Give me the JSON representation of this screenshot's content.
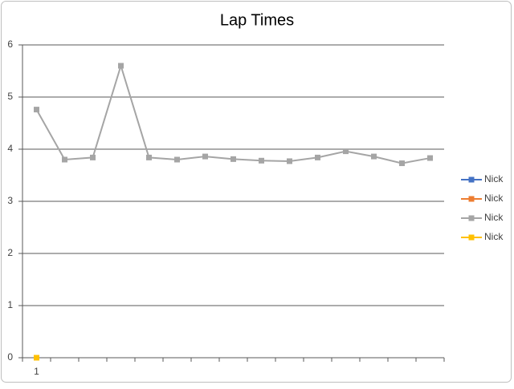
{
  "chart_data": {
    "type": "line",
    "title": "Lap Times",
    "categories": [
      "1",
      null,
      null,
      null,
      null,
      null,
      null,
      null,
      null,
      null,
      null,
      null,
      null,
      null,
      null
    ],
    "series": [
      {
        "name": "Nick",
        "color": "#4472c4",
        "values": [
          null,
          null,
          null,
          null,
          null,
          null,
          null,
          null,
          null,
          null,
          null,
          null,
          null,
          null,
          null
        ]
      },
      {
        "name": "Nick",
        "color": "#ed7d31",
        "values": [
          null,
          null,
          null,
          null,
          null,
          null,
          null,
          null,
          null,
          null,
          null,
          null,
          null,
          null,
          null
        ]
      },
      {
        "name": "Nick",
        "color": "#a5a5a5",
        "values": [
          4.76,
          3.8,
          3.84,
          5.6,
          3.84,
          3.8,
          3.86,
          3.81,
          3.78,
          3.77,
          3.84,
          3.96,
          3.86,
          3.73,
          3.83
        ]
      },
      {
        "name": "Nick",
        "color": "#ffc000",
        "values": [
          0,
          null,
          null,
          null,
          null,
          null,
          null,
          null,
          null,
          null,
          null,
          null,
          null,
          null,
          null
        ]
      }
    ],
    "ylim": [
      0,
      6
    ],
    "yticks": [
      0,
      1,
      2,
      3,
      4,
      5,
      6
    ],
    "grid": true,
    "legend": "right"
  }
}
